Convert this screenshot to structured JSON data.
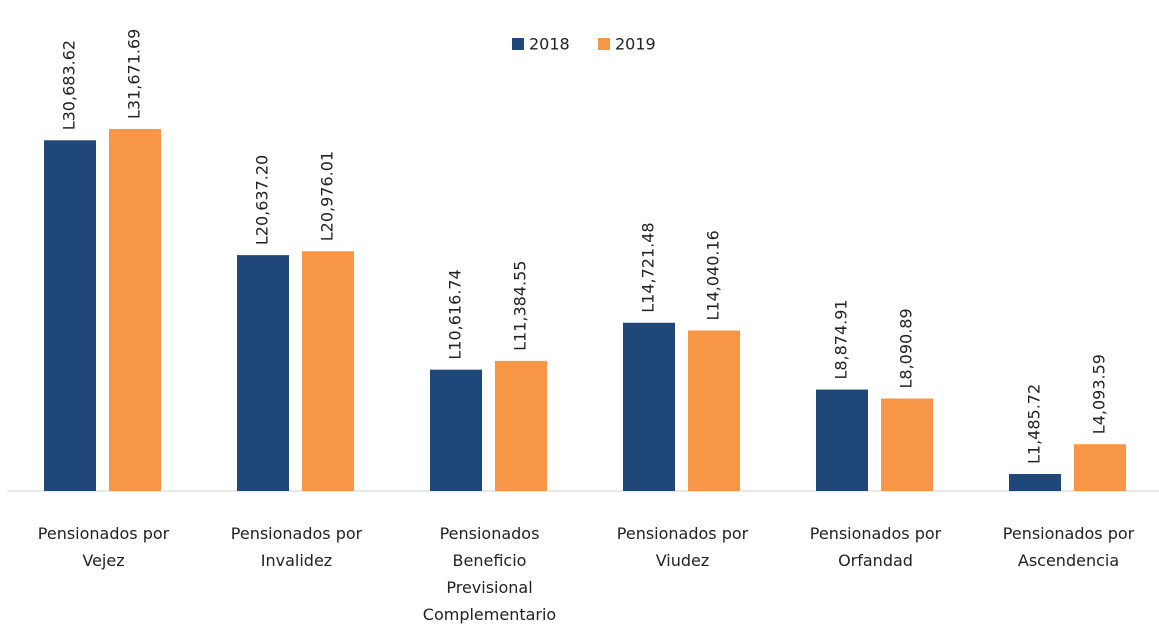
{
  "chart_data": {
    "type": "bar",
    "categories": [
      "Pensionados por Vejez",
      "Pensionados por Invalidez",
      "Pensionados Beneficio Previsional Complementario",
      "Pensionados por Viudez",
      "Pensionados por Orfandad",
      "Pensionados por Ascendencia"
    ],
    "series": [
      {
        "name": "2018",
        "color": "#1f477a",
        "values": [
          30683.62,
          20637.2,
          10616.74,
          14721.48,
          8874.91,
          1485.72
        ],
        "value_labels": [
          "L30,683.62",
          "L20,637.20",
          "L10,616.74",
          "L14,721.48",
          "L8,874.91",
          "L1,485.72"
        ]
      },
      {
        "name": "2019",
        "color": "#f79646",
        "values": [
          31671.69,
          20976.01,
          11384.55,
          14040.16,
          8090.89,
          4093.59
        ],
        "value_labels": [
          "L31,671.69",
          "L20,976.01",
          "L11,384.55",
          "L14,040.16",
          "L8,090.89",
          "L4,093.59"
        ]
      }
    ],
    "legend": "top"
  }
}
